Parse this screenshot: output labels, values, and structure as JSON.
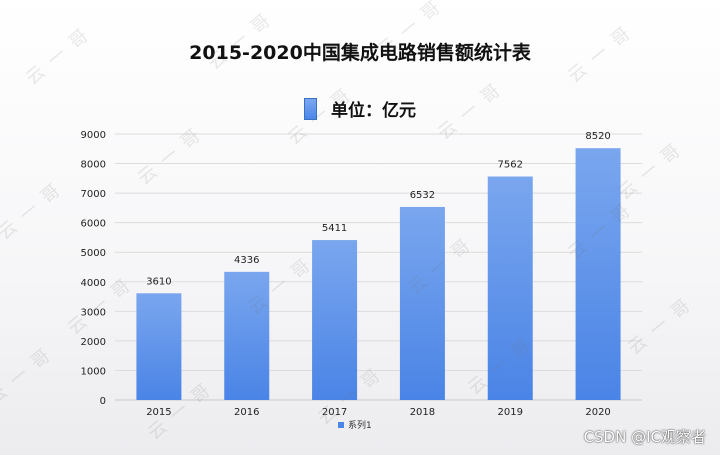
{
  "chart_data": {
    "type": "bar",
    "title": "2015-2020中国集成电路销售额统计表",
    "subtitle": "单位：亿元",
    "categories": [
      "2015",
      "2016",
      "2017",
      "2018",
      "2019",
      "2020"
    ],
    "series": [
      {
        "name": "系列1",
        "values": [
          3610,
          4336,
          5411,
          6532,
          7562,
          8520
        ]
      }
    ],
    "yticks": [
      "0",
      "1000",
      "2000",
      "3000",
      "4000",
      "5000",
      "6000",
      "7000",
      "8000",
      "9000"
    ],
    "ylim": [
      0,
      9000
    ],
    "xlabel": "",
    "ylabel": "",
    "grid": true,
    "legend_position": "bottom",
    "bar_color": "#4a86e8"
  },
  "watermark_text": "云一哥",
  "credit": "CSDN @IC观察者"
}
